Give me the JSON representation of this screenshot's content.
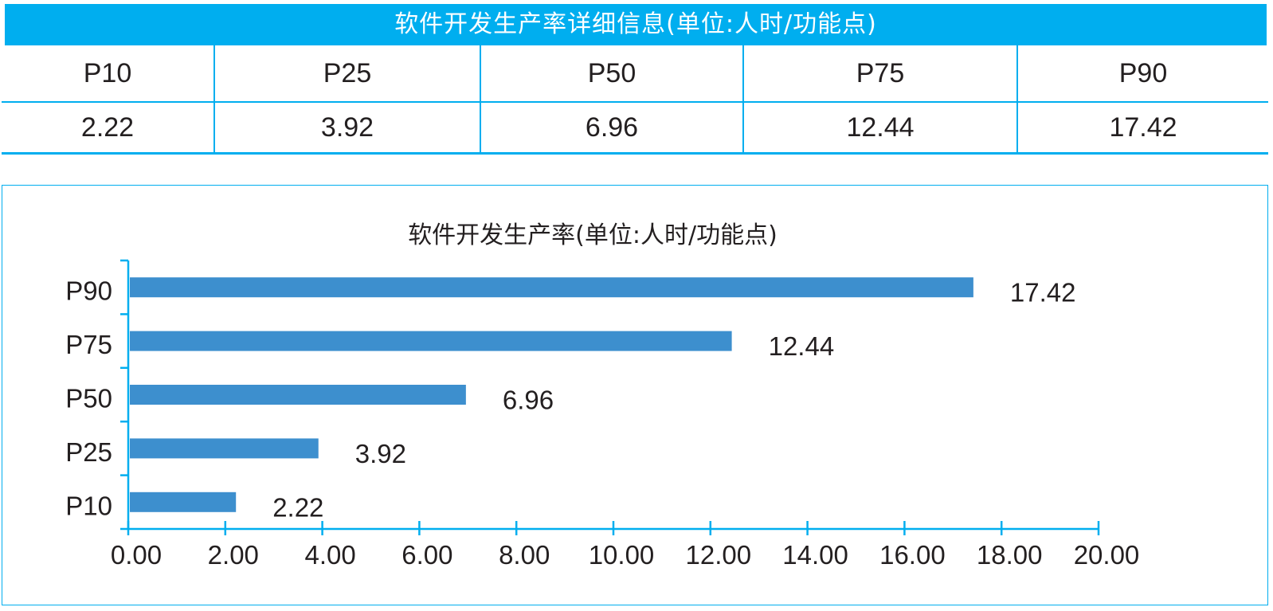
{
  "table": {
    "title": "软件开发生产率详细信息(单位:人时/功能点)",
    "headers": [
      "P10",
      "P25",
      "P50",
      "P75",
      "P90"
    ],
    "values": [
      "2.22",
      "3.92",
      "6.96",
      "12.44",
      "17.42"
    ]
  },
  "colors": {
    "accent": "#00aeef",
    "bar": "#3d8fce",
    "text": "#231f20"
  },
  "chart_data": {
    "type": "bar",
    "orientation": "horizontal",
    "title": "软件开发生产率(单位:人时/功能点)",
    "categories": [
      "P10",
      "P25",
      "P50",
      "P75",
      "P90"
    ],
    "values": [
      2.22,
      3.92,
      6.96,
      12.44,
      17.42
    ],
    "value_labels": [
      "2.22",
      "3.92",
      "6.96",
      "12.44",
      "17.42"
    ],
    "xlim": [
      0,
      20
    ],
    "xticks": [
      "0.00",
      "2.00",
      "4.00",
      "6.00",
      "8.00",
      "10.00",
      "12.00",
      "14.00",
      "16.00",
      "18.00",
      "20.00"
    ],
    "xlabel": "",
    "ylabel": "",
    "grid": false,
    "legend": "none"
  }
}
